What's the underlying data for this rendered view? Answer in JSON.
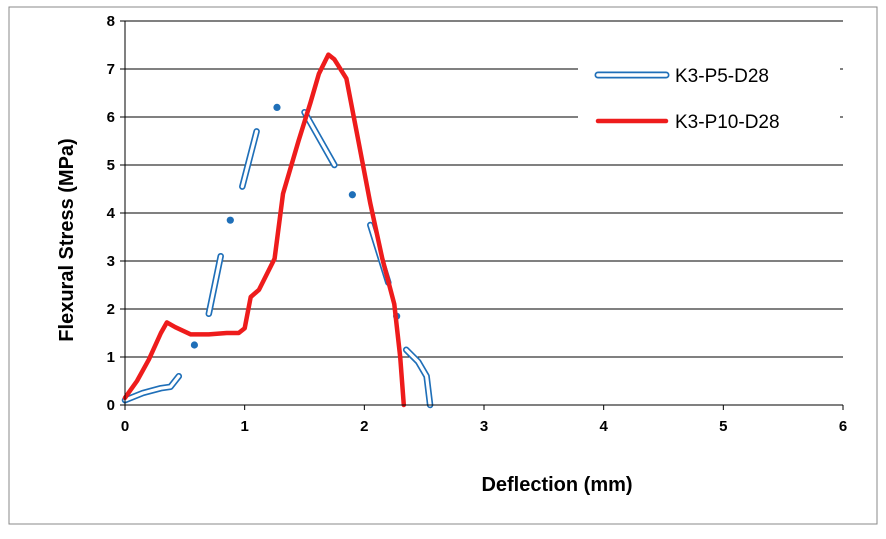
{
  "chart_data": {
    "type": "line",
    "title": "",
    "xlabel": "Deflection (mm)",
    "ylabel": "Flexural Stress (MPa)",
    "xlim": [
      0,
      6
    ],
    "ylim": [
      0,
      8
    ],
    "x_ticks": [
      "0",
      "1",
      "2",
      "3",
      "4",
      "5",
      "6"
    ],
    "y_ticks": [
      "0",
      "1",
      "2",
      "3",
      "4",
      "5",
      "6",
      "7",
      "8"
    ],
    "grid": "horizontal",
    "legend_position": "right",
    "series": [
      {
        "name": "K3-P5-D28",
        "color": "#1f6fb8",
        "style": "hollow-line-with-gaps",
        "points": [
          [
            0.0,
            0.1
          ],
          [
            0.15,
            0.25
          ],
          [
            0.3,
            0.35
          ],
          [
            0.38,
            0.38
          ],
          [
            0.45,
            0.6
          ],
          [
            0.58,
            1.25
          ],
          [
            0.7,
            1.9
          ],
          [
            0.8,
            3.1
          ],
          [
            0.88,
            3.85
          ],
          [
            0.98,
            4.55
          ],
          [
            1.1,
            5.7
          ],
          [
            1.27,
            6.2
          ],
          [
            1.5,
            6.1
          ],
          [
            1.75,
            5.0
          ],
          [
            1.9,
            4.38
          ],
          [
            2.05,
            3.75
          ],
          [
            2.2,
            2.55
          ],
          [
            2.27,
            1.85
          ],
          [
            2.35,
            1.15
          ],
          [
            2.45,
            0.9
          ],
          [
            2.52,
            0.6
          ],
          [
            2.55,
            0.0
          ]
        ]
      },
      {
        "name": "K3-P10-D28",
        "color": "#ee1c1c",
        "style": "solid",
        "points": [
          [
            0.0,
            0.15
          ],
          [
            0.1,
            0.5
          ],
          [
            0.2,
            0.95
          ],
          [
            0.3,
            1.5
          ],
          [
            0.35,
            1.72
          ],
          [
            0.42,
            1.62
          ],
          [
            0.55,
            1.47
          ],
          [
            0.7,
            1.47
          ],
          [
            0.85,
            1.5
          ],
          [
            0.95,
            1.5
          ],
          [
            1.0,
            1.6
          ],
          [
            1.05,
            2.25
          ],
          [
            1.12,
            2.4
          ],
          [
            1.18,
            2.7
          ],
          [
            1.25,
            3.05
          ],
          [
            1.32,
            4.4
          ],
          [
            1.45,
            5.5
          ],
          [
            1.55,
            6.3
          ],
          [
            1.62,
            6.9
          ],
          [
            1.7,
            7.3
          ],
          [
            1.75,
            7.2
          ],
          [
            1.85,
            6.8
          ],
          [
            1.95,
            5.5
          ],
          [
            2.05,
            4.2
          ],
          [
            2.15,
            3.05
          ],
          [
            2.25,
            2.1
          ],
          [
            2.3,
            1.0
          ],
          [
            2.33,
            0.0
          ]
        ]
      }
    ]
  }
}
